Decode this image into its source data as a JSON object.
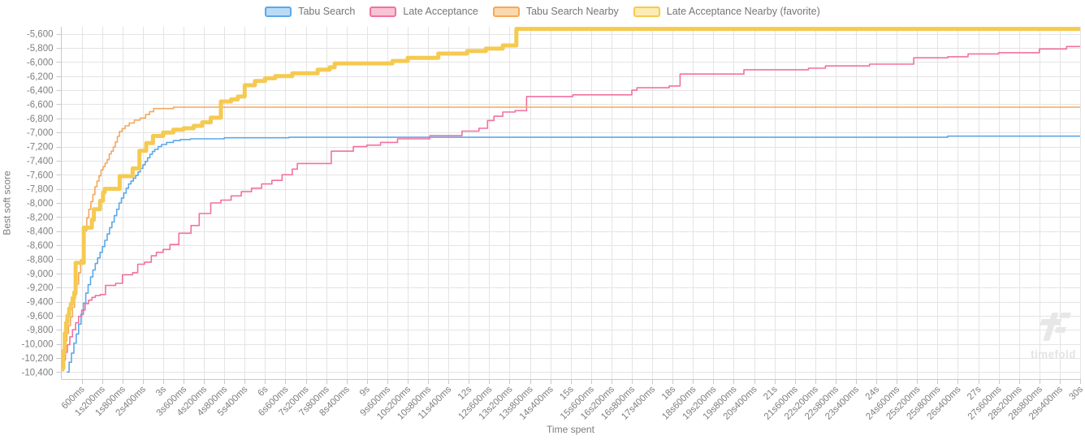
{
  "legend": {
    "items": [
      {
        "label": "Tabu Search",
        "stroke": "#5da8e8",
        "fill": "#b8dcf8"
      },
      {
        "label": "Late Acceptance",
        "stroke": "#f2719f",
        "fill": "#f9c3d3"
      },
      {
        "label": "Tabu Search Nearby",
        "stroke": "#f4a85c",
        "fill": "#fbd8ac"
      },
      {
        "label": "Late Acceptance Nearby (favorite)",
        "stroke": "#f5ca51",
        "fill": "#fcecb3"
      }
    ]
  },
  "watermark": {
    "text": "timefold"
  },
  "chart_data": {
    "type": "line",
    "step_style": "step-after",
    "title": "",
    "xlabel": "Time spent",
    "ylabel": "Best soft score",
    "xlim_ms": [
      0,
      30000
    ],
    "ylim": [
      -10500,
      -5500
    ],
    "grid": true,
    "legend_position": "top",
    "x_tick_interval_ms": 600,
    "x_tick_labels": [
      "600ms",
      "1s200ms",
      "1s800ms",
      "2s400ms",
      "3s",
      "3s600ms",
      "4s200ms",
      "4s800ms",
      "5s400ms",
      "6s",
      "6s600ms",
      "7s200ms",
      "7s800ms",
      "8s400ms",
      "9s",
      "9s600ms",
      "10s200ms",
      "10s800ms",
      "11s400ms",
      "12s",
      "12s600ms",
      "13s200ms",
      "13s800ms",
      "14s400ms",
      "15s",
      "15s600ms",
      "16s200ms",
      "16s800ms",
      "17s400ms",
      "18s",
      "18s600ms",
      "19s200ms",
      "19s800ms",
      "20s400ms",
      "21s",
      "21s600ms",
      "22s200ms",
      "22s800ms",
      "23s400ms",
      "24s",
      "24s600ms",
      "25s200ms",
      "25s800ms",
      "26s400ms",
      "27s",
      "27s600ms",
      "28s200ms",
      "28s800ms",
      "29s400ms",
      "30s"
    ],
    "y_tick_start": -5600,
    "y_tick_step": -200,
    "y_tick_labels": [
      "-5,600",
      "-5,800",
      "-6,000",
      "-6,200",
      "-6,400",
      "-6,600",
      "-6,800",
      "-7,000",
      "-7,200",
      "-7,400",
      "-7,600",
      "-7,800",
      "-8,000",
      "-8,200",
      "-8,400",
      "-8,600",
      "-8,800",
      "-9,000",
      "-9,200",
      "-9,400",
      "-9,600",
      "-9,800",
      "-10,000",
      "-10,200",
      "-10,400"
    ],
    "series": [
      {
        "name": "Tabu Search",
        "color": "#5da8e8",
        "line_width": 1.6,
        "points": [
          [
            160,
            -10400
          ],
          [
            230,
            -10260
          ],
          [
            300,
            -10130
          ],
          [
            370,
            -9990
          ],
          [
            440,
            -9860
          ],
          [
            510,
            -9720
          ],
          [
            580,
            -9580
          ],
          [
            650,
            -9420
          ],
          [
            720,
            -9280
          ],
          [
            790,
            -9160
          ],
          [
            860,
            -9050
          ],
          [
            930,
            -8950
          ],
          [
            1000,
            -8860
          ],
          [
            1070,
            -8780
          ],
          [
            1140,
            -8700
          ],
          [
            1210,
            -8620
          ],
          [
            1280,
            -8530
          ],
          [
            1350,
            -8440
          ],
          [
            1420,
            -8350
          ],
          [
            1490,
            -8270
          ],
          [
            1560,
            -8180
          ],
          [
            1630,
            -8090
          ],
          [
            1700,
            -8000
          ],
          [
            1770,
            -7930
          ],
          [
            1840,
            -7860
          ],
          [
            1910,
            -7790
          ],
          [
            1980,
            -7730
          ],
          [
            2050,
            -7690
          ],
          [
            2120,
            -7650
          ],
          [
            2190,
            -7610
          ],
          [
            2260,
            -7560
          ],
          [
            2330,
            -7510
          ],
          [
            2400,
            -7460
          ],
          [
            2470,
            -7410
          ],
          [
            2540,
            -7360
          ],
          [
            2610,
            -7310
          ],
          [
            2680,
            -7270
          ],
          [
            2750,
            -7240
          ],
          [
            2850,
            -7200
          ],
          [
            2950,
            -7170
          ],
          [
            3100,
            -7140
          ],
          [
            3300,
            -7115
          ],
          [
            3500,
            -7100
          ],
          [
            3800,
            -7090
          ],
          [
            4800,
            -7075
          ],
          [
            6700,
            -7068
          ],
          [
            26100,
            -7052
          ]
        ]
      },
      {
        "name": "Late Acceptance",
        "color": "#f2719f",
        "line_width": 1.6,
        "points": [
          [
            20,
            -10350
          ],
          [
            70,
            -10230
          ],
          [
            120,
            -10120
          ],
          [
            180,
            -10010
          ],
          [
            250,
            -9900
          ],
          [
            330,
            -9800
          ],
          [
            420,
            -9700
          ],
          [
            510,
            -9610
          ],
          [
            600,
            -9520
          ],
          [
            700,
            -9430
          ],
          [
            800,
            -9380
          ],
          [
            900,
            -9340
          ],
          [
            1000,
            -9315
          ],
          [
            1150,
            -9300
          ],
          [
            1300,
            -9170
          ],
          [
            1600,
            -9140
          ],
          [
            1800,
            -9020
          ],
          [
            2100,
            -8990
          ],
          [
            2250,
            -8870
          ],
          [
            2450,
            -8840
          ],
          [
            2650,
            -8750
          ],
          [
            2800,
            -8700
          ],
          [
            3000,
            -8660
          ],
          [
            3200,
            -8590
          ],
          [
            3460,
            -8430
          ],
          [
            3820,
            -8320
          ],
          [
            4060,
            -8150
          ],
          [
            4400,
            -8000
          ],
          [
            4700,
            -7960
          ],
          [
            5000,
            -7900
          ],
          [
            5300,
            -7840
          ],
          [
            5600,
            -7790
          ],
          [
            5900,
            -7730
          ],
          [
            6200,
            -7680
          ],
          [
            6500,
            -7600
          ],
          [
            6800,
            -7520
          ],
          [
            6950,
            -7440
          ],
          [
            7950,
            -7265
          ],
          [
            8600,
            -7200
          ],
          [
            9000,
            -7180
          ],
          [
            9400,
            -7140
          ],
          [
            9900,
            -7090
          ],
          [
            10850,
            -7045
          ],
          [
            11800,
            -6980
          ],
          [
            12300,
            -6940
          ],
          [
            12550,
            -6830
          ],
          [
            12740,
            -6770
          ],
          [
            13000,
            -6710
          ],
          [
            13360,
            -6690
          ],
          [
            13700,
            -6490
          ],
          [
            15060,
            -6465
          ],
          [
            16800,
            -6400
          ],
          [
            16950,
            -6365
          ],
          [
            17900,
            -6340
          ],
          [
            18220,
            -6170
          ],
          [
            20100,
            -6110
          ],
          [
            22000,
            -6088
          ],
          [
            22500,
            -6055
          ],
          [
            23800,
            -6030
          ],
          [
            25100,
            -5940
          ],
          [
            26100,
            -5925
          ],
          [
            26700,
            -5885
          ],
          [
            27600,
            -5868
          ],
          [
            28800,
            -5815
          ],
          [
            29600,
            -5780
          ]
        ]
      },
      {
        "name": "Tabu Search Nearby",
        "color": "#f4a85c",
        "line_width": 1.6,
        "points": [
          [
            20,
            -10380
          ],
          [
            60,
            -10150
          ],
          [
            110,
            -9960
          ],
          [
            160,
            -9850
          ],
          [
            210,
            -9740
          ],
          [
            270,
            -9620
          ],
          [
            330,
            -9480
          ],
          [
            390,
            -9300
          ],
          [
            450,
            -9150
          ],
          [
            510,
            -8990
          ],
          [
            570,
            -8810
          ],
          [
            630,
            -8620
          ],
          [
            690,
            -8390
          ],
          [
            750,
            -8210
          ],
          [
            810,
            -8090
          ],
          [
            870,
            -7980
          ],
          [
            930,
            -7880
          ],
          [
            990,
            -7770
          ],
          [
            1050,
            -7690
          ],
          [
            1110,
            -7615
          ],
          [
            1170,
            -7530
          ],
          [
            1230,
            -7485
          ],
          [
            1290,
            -7435
          ],
          [
            1350,
            -7385
          ],
          [
            1410,
            -7305
          ],
          [
            1470,
            -7265
          ],
          [
            1530,
            -7205
          ],
          [
            1590,
            -7135
          ],
          [
            1650,
            -7055
          ],
          [
            1710,
            -6985
          ],
          [
            1790,
            -6945
          ],
          [
            1880,
            -6905
          ],
          [
            2000,
            -6865
          ],
          [
            2150,
            -6825
          ],
          [
            2320,
            -6795
          ],
          [
            2480,
            -6745
          ],
          [
            2600,
            -6705
          ],
          [
            2720,
            -6660
          ],
          [
            3300,
            -6640
          ]
        ]
      },
      {
        "name": "Late Acceptance Nearby (favorite)",
        "color": "#f5ca51",
        "line_width": 5,
        "points": [
          [
            20,
            -10350
          ],
          [
            60,
            -10100
          ],
          [
            100,
            -9850
          ],
          [
            140,
            -9700
          ],
          [
            180,
            -9600
          ],
          [
            230,
            -9500
          ],
          [
            280,
            -9430
          ],
          [
            330,
            -9350
          ],
          [
            380,
            -9270
          ],
          [
            420,
            -8850
          ],
          [
            660,
            -8350
          ],
          [
            900,
            -8240
          ],
          [
            960,
            -8090
          ],
          [
            1140,
            -7970
          ],
          [
            1230,
            -7850
          ],
          [
            1280,
            -7800
          ],
          [
            1720,
            -7620
          ],
          [
            2100,
            -7510
          ],
          [
            2300,
            -7260
          ],
          [
            2500,
            -7150
          ],
          [
            2700,
            -7050
          ],
          [
            3000,
            -7000
          ],
          [
            3300,
            -6960
          ],
          [
            3600,
            -6940
          ],
          [
            3900,
            -6905
          ],
          [
            4150,
            -6855
          ],
          [
            4400,
            -6790
          ],
          [
            4700,
            -6560
          ],
          [
            5000,
            -6530
          ],
          [
            5200,
            -6490
          ],
          [
            5400,
            -6330
          ],
          [
            5700,
            -6270
          ],
          [
            6000,
            -6230
          ],
          [
            6300,
            -6200
          ],
          [
            6800,
            -6160
          ],
          [
            7550,
            -6110
          ],
          [
            7900,
            -6075
          ],
          [
            8050,
            -6020
          ],
          [
            9750,
            -5985
          ],
          [
            10200,
            -5940
          ],
          [
            11100,
            -5880
          ],
          [
            11950,
            -5845
          ],
          [
            12500,
            -5810
          ],
          [
            13000,
            -5765
          ],
          [
            13400,
            -5530
          ]
        ]
      }
    ]
  }
}
